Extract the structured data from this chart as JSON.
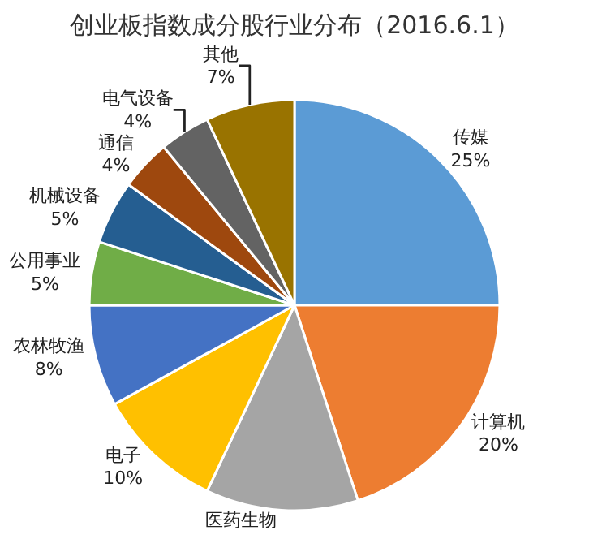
{
  "chart_data": {
    "type": "pie",
    "title": "创业板指数成分股行业分布（2016.6.1）",
    "categories": [
      "传媒",
      "计算机",
      "医药生物",
      "电子",
      "农林牧渔",
      "公用事业",
      "机械设备",
      "通信",
      "电气设备",
      "其他"
    ],
    "values": [
      25,
      20,
      12,
      10,
      8,
      5,
      5,
      4,
      4,
      7
    ],
    "value_labels": [
      "25%",
      "20%",
      null,
      "10%",
      "8%",
      "5%",
      "5%",
      "4%",
      "4%",
      "7%"
    ],
    "colors": [
      "#5b9bd5",
      "#ed7d31",
      "#a5a5a5",
      "#ffc000",
      "#4472c4",
      "#70ad47",
      "#255e91",
      "#9e480e",
      "#636363",
      "#997300"
    ],
    "legend": false
  }
}
